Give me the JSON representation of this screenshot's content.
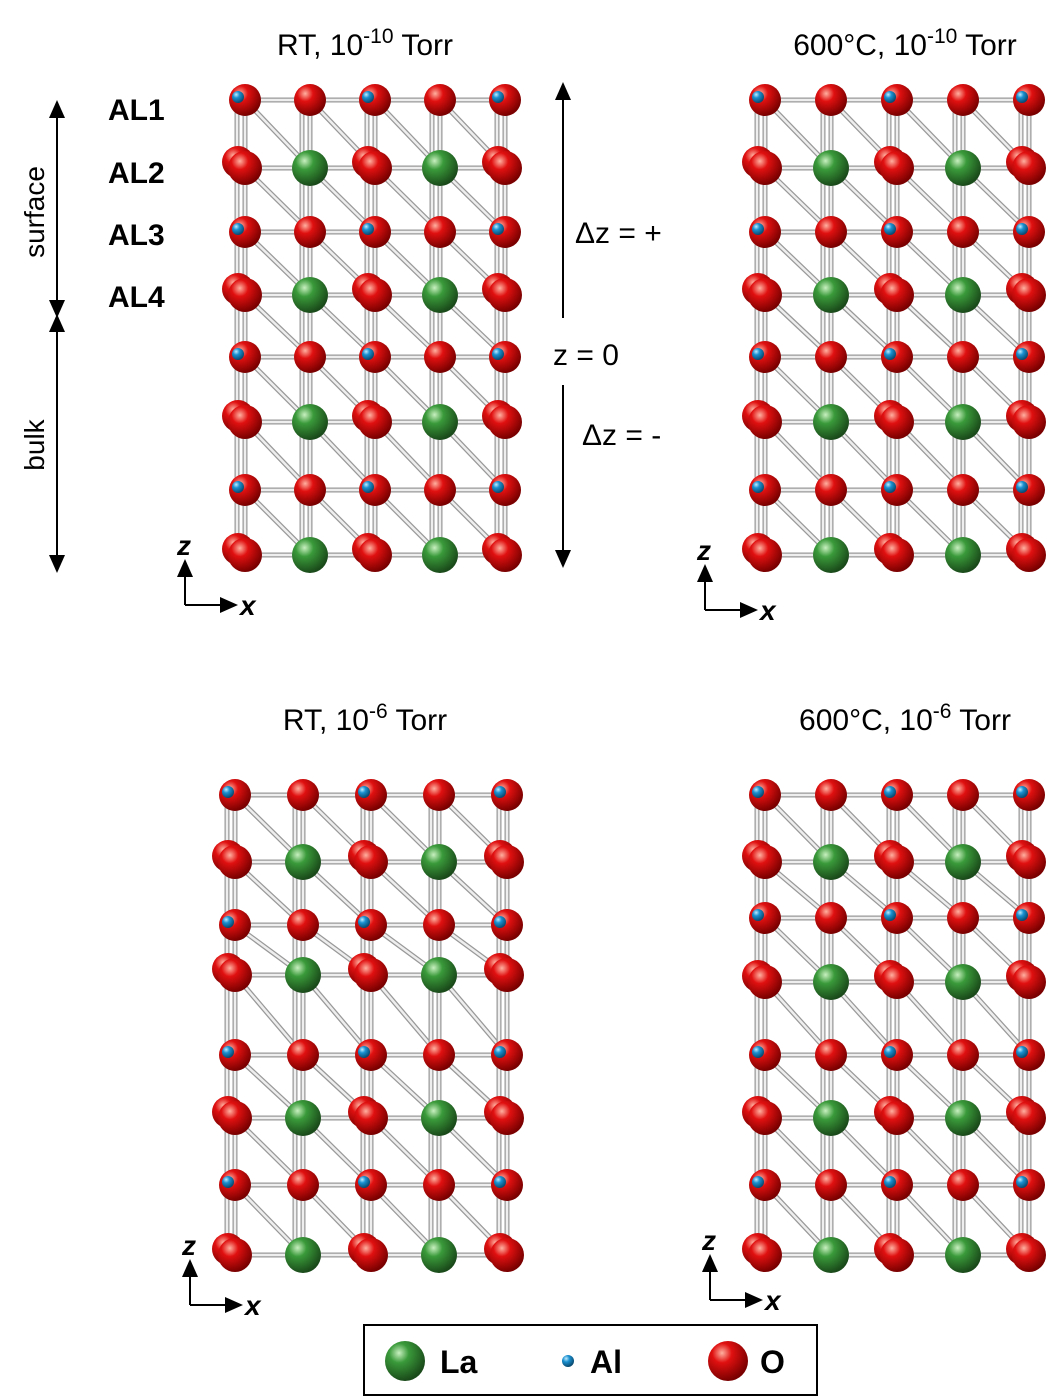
{
  "panels": [
    {
      "title": {
        "prefix": "RT, 10",
        "exponent": "-10",
        "suffix": " Torr"
      },
      "axes": {
        "vertical": "z",
        "horizontal": "x"
      }
    },
    {
      "title": {
        "prefix": "600°C, 10",
        "exponent": "-10",
        "suffix": " Torr"
      },
      "axes": {
        "vertical": "z",
        "horizontal": "x"
      }
    },
    {
      "title": {
        "prefix": "RT, 10",
        "exponent": "-6",
        "suffix": " Torr"
      },
      "axes": {
        "vertical": "z",
        "horizontal": "x"
      }
    },
    {
      "title": {
        "prefix": "600°C, 10",
        "exponent": "-6",
        "suffix": " Torr"
      },
      "axes": {
        "vertical": "z",
        "horizontal": "x"
      }
    }
  ],
  "layer_labels": [
    "AL1",
    "AL2",
    "AL3",
    "AL4"
  ],
  "regions": [
    "surface",
    "bulk"
  ],
  "displacement_labels": {
    "positive": "Δz = +",
    "origin": "z = 0",
    "negative": "Δz = -"
  },
  "legend": [
    "La",
    "Al",
    "O"
  ]
}
